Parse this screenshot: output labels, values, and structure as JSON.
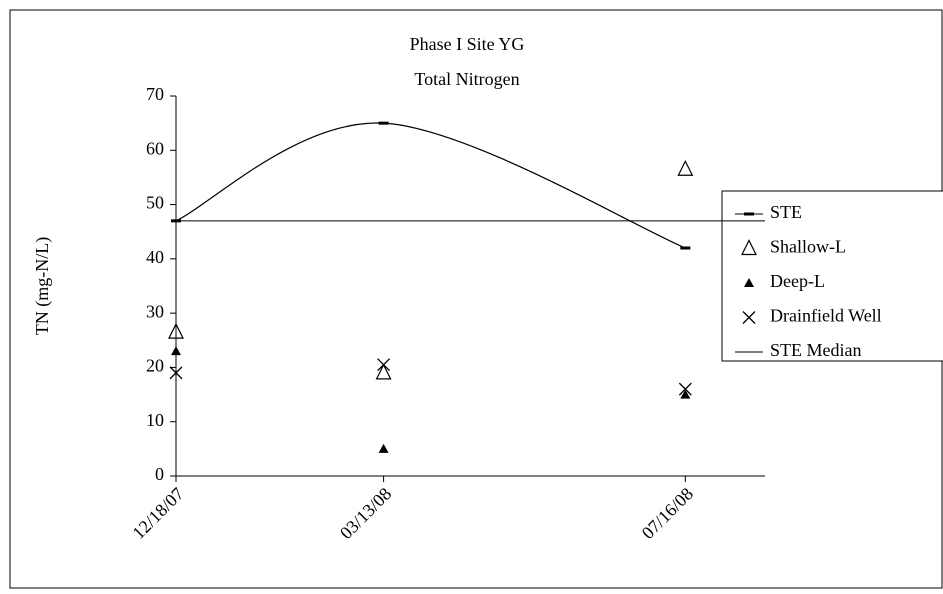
{
  "chart_data": {
    "type": "line",
    "title": [
      "Phase I Site YG",
      "Total Nitrogen"
    ],
    "y_label": "TN (mg-N/L)",
    "x": [
      "12/18/07",
      "03/13/08",
      "07/16/08"
    ],
    "xlim": [
      "12/18/07",
      "08/18/08"
    ],
    "ylim": [
      0,
      70
    ],
    "yticks": [
      0,
      10,
      20,
      30,
      40,
      50,
      60,
      70
    ],
    "series": [
      {
        "name": "STE",
        "marker": "dash",
        "line": "smooth",
        "color": "#000000",
        "values": [
          47,
          65,
          42
        ]
      },
      {
        "name": "Shallow-L",
        "marker": "open-triangle",
        "color": "#000000",
        "values": [
          26.5,
          19,
          56.5
        ]
      },
      {
        "name": "Deep-L",
        "marker": "filled-triangle",
        "color": "#000000",
        "values": [
          23,
          5,
          15
        ]
      },
      {
        "name": "Drainfield Well",
        "marker": "x",
        "color": "#000000",
        "values": [
          19,
          20.5,
          16
        ]
      }
    ],
    "reference_lines": [
      {
        "name": "STE Median",
        "value": 47,
        "color": "#000000"
      }
    ],
    "grid": false,
    "legend": "right"
  }
}
